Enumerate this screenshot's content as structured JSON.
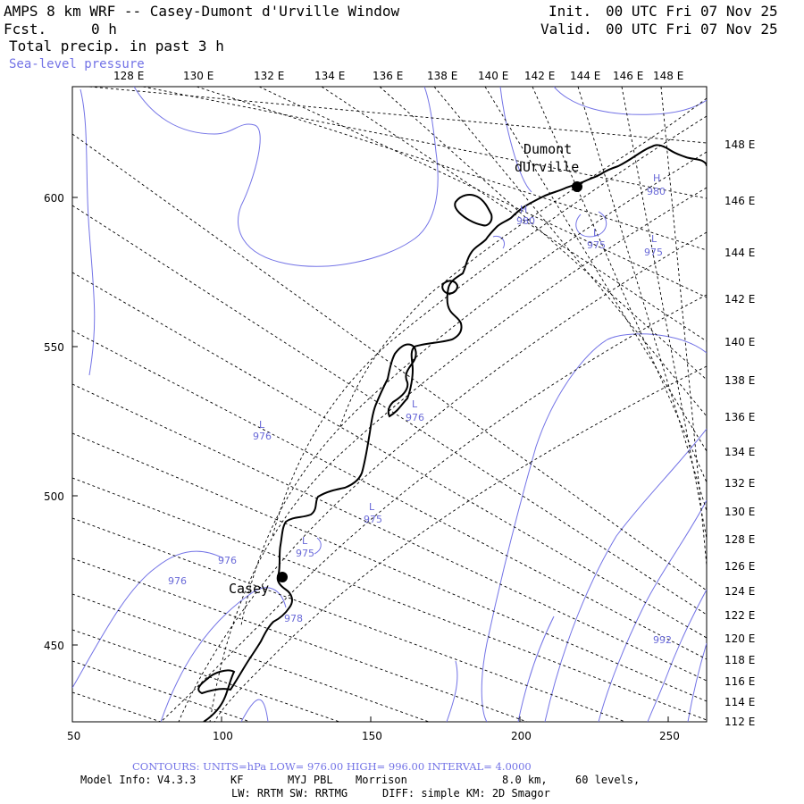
{
  "header": {
    "title": "AMPS 8 km WRF -- Casey-Dumont d'Urville Window",
    "fcst_label": "Fcst.",
    "fcst_value": "0 h",
    "field1": "Total precip. in past 3 h",
    "field2": "Sea-level pressure",
    "init_label": "Init.",
    "init_value": "00 UTC Fri 07 Nov 25",
    "valid_label": "Valid.",
    "valid_value": "00 UTC Fri 07 Nov 25"
  },
  "axes": {
    "bottom_ticks": [
      "50",
      "100",
      "150",
      "200",
      "250"
    ],
    "left_ticks": [
      "600",
      "550",
      "500",
      "450"
    ],
    "top_lon_labels": [
      "128 E",
      "130 E",
      "132 E",
      "134 E",
      "136 E",
      "138 E",
      "140 E",
      "142 E",
      "144 E",
      "146 E",
      "148 E"
    ],
    "right_lon_labels": [
      "148 E",
      "146 E",
      "144 E",
      "142 E",
      "140 E",
      "138 E",
      "136 E",
      "134 E",
      "132 E",
      "130 E",
      "128 E",
      "126 E",
      "124 E",
      "122 E",
      "120 E",
      "118 E",
      "116 E",
      "114 E",
      "112 E"
    ]
  },
  "stations": {
    "dumont_line1": "Dumont",
    "dumont_line2": "dUrville",
    "casey": "Casey"
  },
  "contour_labels": {
    "h": "H",
    "l": "L",
    "v980": "980",
    "v975": "975",
    "v976": "976",
    "v978": "978",
    "v992": "992"
  },
  "colors": {
    "contour": "#7373e6",
    "graticule": "#000000",
    "coastline": "#000000"
  },
  "footer": {
    "contours": "CONTOURS: UNITS=hPa LOW= 976.00 HIGH= 996.00 INTERVAL= 4.0000",
    "model_label": "Model Info:",
    "model_version": "V4.3.3",
    "cumulus": "KF",
    "pbl": "MYJ PBL",
    "micro": "Morrison",
    "resolution": "8.0 km,",
    "levels": "60 levels,",
    "radiation": "LW: RRTM SW: RRTMG",
    "diffusion": "DIFF: simple KM: 2D Smagor"
  }
}
